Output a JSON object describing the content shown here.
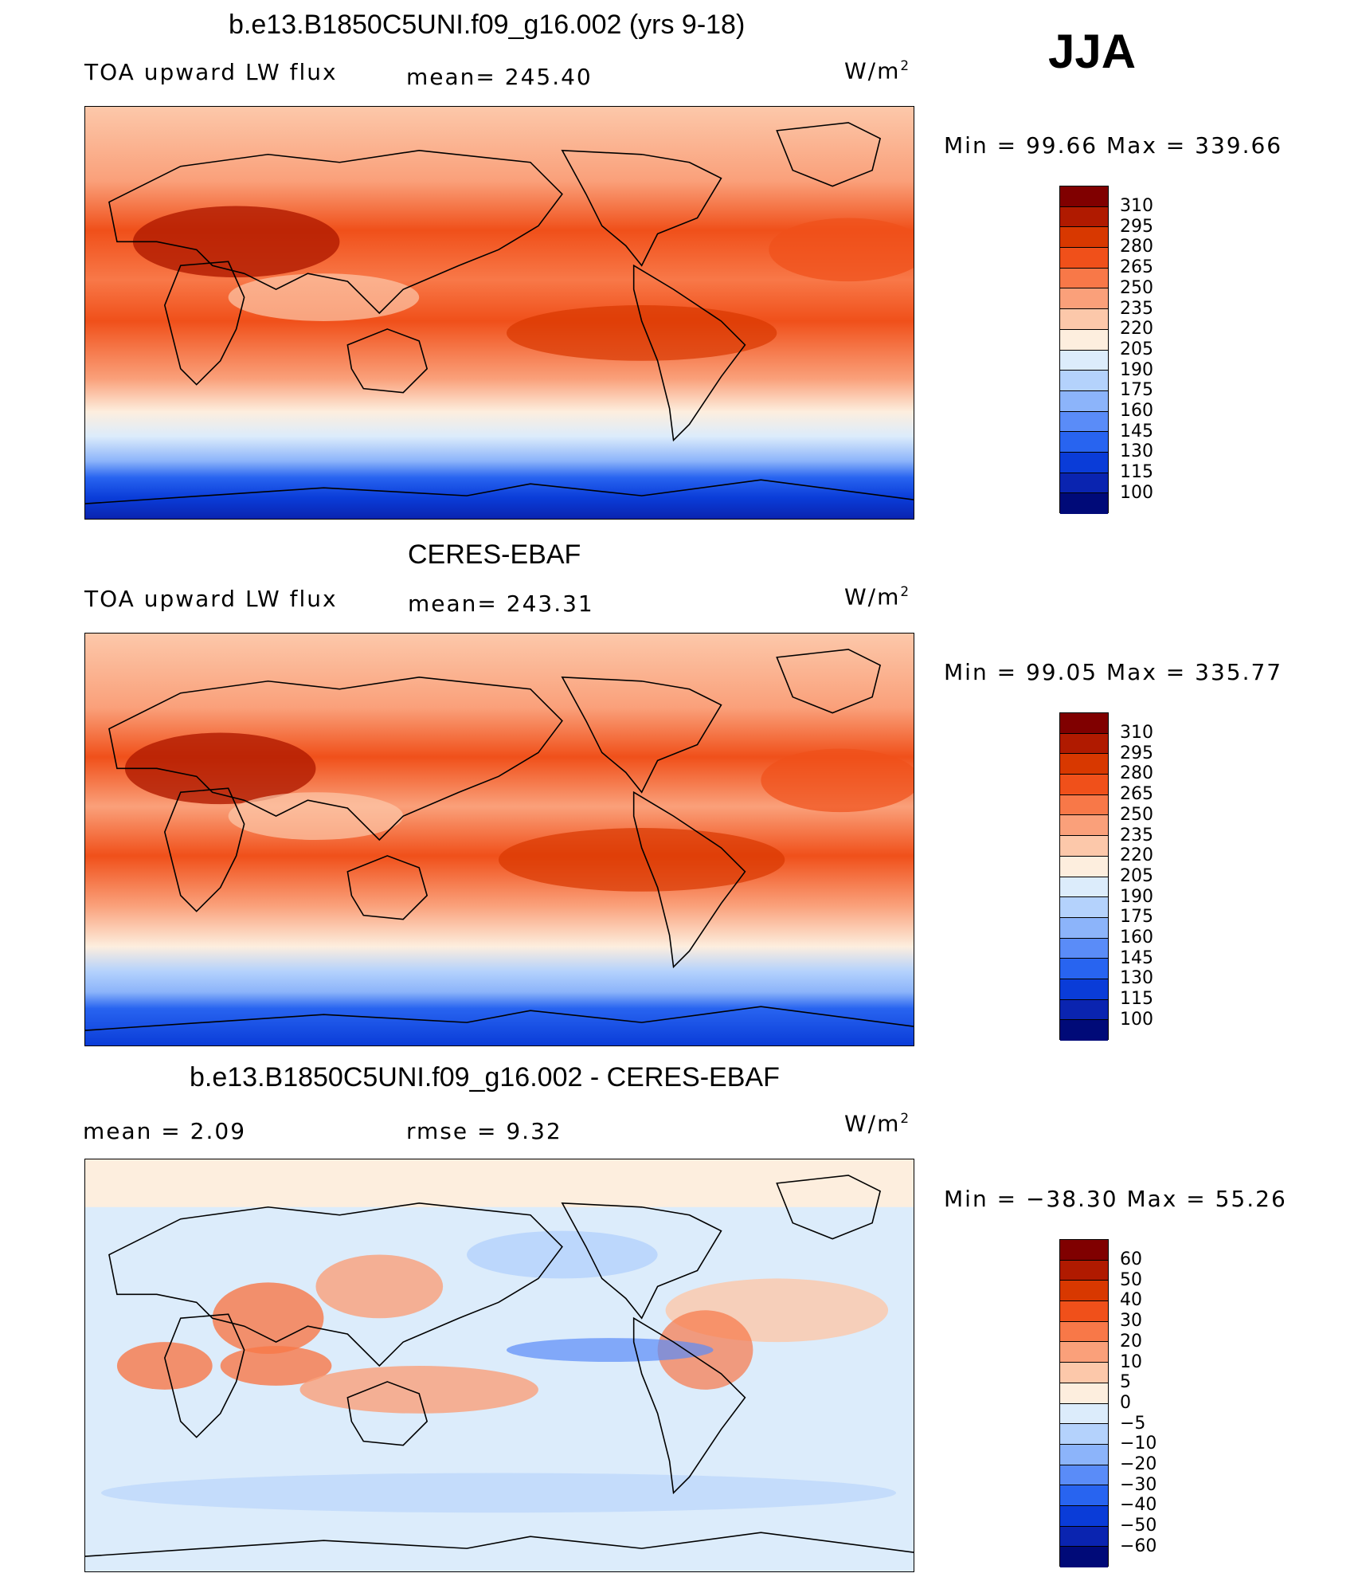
{
  "season": "JJA",
  "panels": [
    {
      "title": "b.e13.B1850C5UNI.f09_g16.002 (yrs 9-18)",
      "left_label": "TOA upward LW flux",
      "center_label": "mean=  245.40",
      "units_base": "W/m",
      "units_exp": "2",
      "minmax": "Min  =    99.66  Max  =  339.66",
      "ticks": [
        "310",
        "295",
        "280",
        "265",
        "250",
        "235",
        "220",
        "205",
        "190",
        "175",
        "160",
        "145",
        "130",
        "115",
        "100"
      ]
    },
    {
      "title": "CERES-EBAF",
      "left_label": "TOA upward LW flux",
      "center_label": "mean=  243.31",
      "units_base": "W/m",
      "units_exp": "2",
      "minmax": "Min  =    99.05  Max  =  335.77",
      "ticks": [
        "310",
        "295",
        "280",
        "265",
        "250",
        "235",
        "220",
        "205",
        "190",
        "175",
        "160",
        "145",
        "130",
        "115",
        "100"
      ]
    },
    {
      "title": "b.e13.B1850C5UNI.f09_g16.002 - CERES-EBAF",
      "left_label": "mean  =      2.09",
      "center_label": "rmse  =      9.32",
      "units_base": "W/m",
      "units_exp": "2",
      "minmax": "Min  = −38.30  Max  =    55.26",
      "ticks": [
        "60",
        "50",
        "40",
        "30",
        "20",
        "10",
        "5",
        "0",
        "−5",
        "−10",
        "−20",
        "−30",
        "−40",
        "−50",
        "−60"
      ]
    }
  ],
  "colors": {
    "abs_scale": [
      "#800000",
      "#b01a00",
      "#d83800",
      "#f0501a",
      "#f87848",
      "#faa07a",
      "#fcc8aa",
      "#fdeede",
      "#dcecfb",
      "#b4d2fc",
      "#8cb4fa",
      "#5a8cf8",
      "#2864f0",
      "#0a3cd8",
      "#0a24b0",
      "#000a78"
    ],
    "diff_scale": [
      "#800000",
      "#b01a00",
      "#d83800",
      "#f0501a",
      "#f87848",
      "#faa07a",
      "#fcc8aa",
      "#fdeede",
      "#dcecfb",
      "#b4d2fc",
      "#8cb4fa",
      "#5a8cf8",
      "#2864f0",
      "#0a3cd8",
      "#0a24b0",
      "#000a78"
    ]
  }
}
